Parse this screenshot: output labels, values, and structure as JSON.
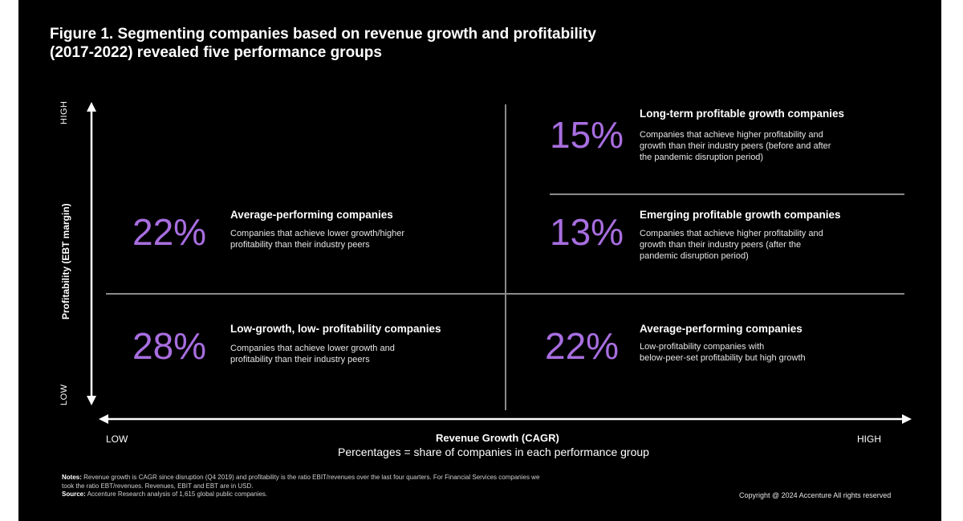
{
  "title": {
    "line1": "Figure 1. Segmenting companies based on revenue growth and profitability",
    "line2": "(2017-2022) revealed five performance groups"
  },
  "axes": {
    "y_label": "Profitability (EBT margin)",
    "y_high": "HIGH",
    "y_low": "LOW",
    "x_label": "Revenue Growth (CAGR)",
    "x_low": "LOW",
    "x_high": "HIGH",
    "note": "Percentages = share of companies in each performance group"
  },
  "segments": [
    {
      "percent": "15%",
      "heading": "Long-term profitable growth companies",
      "desc1": "Companies that achieve higher profitability and",
      "desc2": "growth than their industry peers (before and after",
      "desc3": "the pandemic disruption period)"
    },
    {
      "percent": "22%",
      "heading": "Average-performing companies",
      "desc1": "Companies that achieve lower growth/higher",
      "desc2": "profitability than their industry peers"
    },
    {
      "percent": "13%",
      "heading": "Emerging profitable growth companies",
      "desc1": "Companies that achieve higher profitability and",
      "desc2": "growth than their industry peers (after the",
      "desc3": "pandemic disruption period)"
    },
    {
      "percent": "28%",
      "heading": "Low-growth, low- profitability companies",
      "desc1": "Companies that achieve lower growth and",
      "desc2": "profitability than their industry peers"
    },
    {
      "percent": "22%",
      "heading": "Average-performing companies",
      "desc1": "Low-profitability companies with",
      "desc2": "below-peer-set profitability but high growth"
    }
  ],
  "footer": {
    "notes_label": "Notes:",
    "notes_line1": "Revenue growth is CAGR since disruption (Q4 2019) and profitability is the ratio EBIT/revenues over the last four quarters. For Financial Services companies we",
    "notes_line2": "took the ratio EBT/revenues. Revenues, EBIT and EBT are in USD.",
    "source_label": "Source:",
    "source_text": "Accenture Research analysis of 1,615 global public companies.",
    "copyright": "Copyright @ 2024 Accenture All rights reserved"
  },
  "colors": {
    "background": "#000000",
    "percent_accent": "#a86ee0",
    "divider": "#8a8a8a"
  }
}
